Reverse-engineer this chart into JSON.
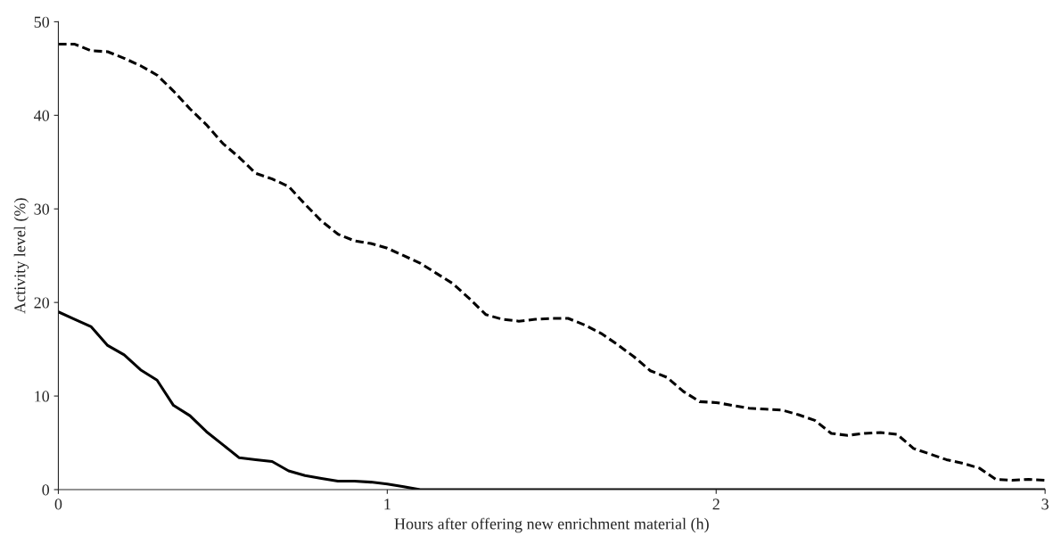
{
  "chart_data": {
    "type": "line",
    "xlabel": "Hours after offering new enrichment material (h)",
    "ylabel": "Activity level (%)",
    "xlim": [
      0,
      3
    ],
    "xticks": [
      0,
      1,
      2,
      3
    ],
    "ylim": [
      0,
      50
    ],
    "yticks": [
      0,
      10,
      20,
      30,
      40,
      50
    ],
    "marker": "none",
    "series": [
      {
        "color": "#000000",
        "line_style": "dashed",
        "x": [
          0,
          0.05,
          0.1,
          0.15,
          0.2,
          0.25,
          0.3,
          0.35,
          0.4,
          0.45,
          0.5,
          0.55,
          0.6,
          0.65,
          0.7,
          0.75,
          0.8,
          0.85,
          0.9,
          0.95,
          1.0,
          1.05,
          1.1,
          1.15,
          1.2,
          1.25,
          1.3,
          1.35,
          1.4,
          1.45,
          1.5,
          1.55,
          1.6,
          1.65,
          1.7,
          1.75,
          1.8,
          1.85,
          1.9,
          1.95,
          2.0,
          2.05,
          2.1,
          2.15,
          2.2,
          2.25,
          2.3,
          2.35,
          2.4,
          2.45,
          2.5,
          2.55,
          2.6,
          2.65,
          2.7,
          2.75,
          2.8,
          2.85,
          2.9,
          2.95,
          3.0
        ],
        "values": [
          47.6,
          47.6,
          46.9,
          46.8,
          46.1,
          45.3,
          44.3,
          42.6,
          40.7,
          39.0,
          37.0,
          35.5,
          33.8,
          33.2,
          32.4,
          30.5,
          28.7,
          27.3,
          26.6,
          26.3,
          25.8,
          25.0,
          24.2,
          23.1,
          22.0,
          20.4,
          18.7,
          18.2,
          18.0,
          18.2,
          18.3,
          18.3,
          17.6,
          16.7,
          15.5,
          14.2,
          12.7,
          12.0,
          10.5,
          9.4,
          9.3,
          9.0,
          8.7,
          8.6,
          8.5,
          8.0,
          7.4,
          6.0,
          5.8,
          6.0,
          6.1,
          5.9,
          4.4,
          3.8,
          3.2,
          2.8,
          2.3,
          1.1,
          1.0,
          1.1,
          1.0
        ]
      },
      {
        "color": "#000000",
        "line_style": "solid",
        "x": [
          0,
          0.05,
          0.1,
          0.15,
          0.2,
          0.25,
          0.3,
          0.35,
          0.4,
          0.45,
          0.5,
          0.55,
          0.6,
          0.65,
          0.7,
          0.75,
          0.8,
          0.85,
          0.9,
          0.95,
          1.0,
          1.05,
          1.1,
          3.0
        ],
        "values": [
          19.0,
          18.2,
          17.4,
          15.4,
          14.4,
          12.8,
          11.7,
          9.0,
          7.9,
          6.2,
          4.8,
          3.4,
          3.2,
          3.0,
          2.0,
          1.5,
          1.2,
          0.9,
          0.9,
          0.8,
          0.6,
          0.3,
          0.0,
          0.0
        ]
      }
    ]
  }
}
